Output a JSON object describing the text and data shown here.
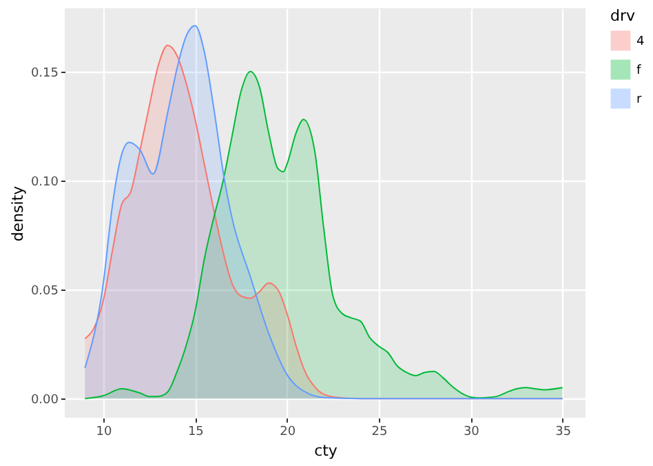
{
  "chart_data": {
    "type": "area",
    "xlabel": "cty",
    "ylabel": "density",
    "legend_title": "drv",
    "legend": "right",
    "grid": true,
    "xlim": [
      7.9,
      36.25
    ],
    "ylim": [
      -0.0088,
      0.179
    ],
    "xticks": [
      10,
      15,
      20,
      25,
      30,
      35
    ],
    "yticks": [
      {
        "value": 0,
        "label": "0.00"
      },
      {
        "value": 0.05,
        "label": "0.05"
      },
      {
        "value": 0.1,
        "label": "0.10"
      },
      {
        "value": 0.15,
        "label": "0.15"
      }
    ],
    "series": [
      {
        "name": "4",
        "color": "#f8766d",
        "x": [
          9,
          9.5,
          10,
          10.5,
          11,
          11.5,
          12,
          12.5,
          13,
          13.5,
          14,
          14.5,
          15,
          15.5,
          16,
          16.5,
          17,
          17.5,
          18,
          18.5,
          19,
          19.5,
          20,
          20.5,
          21,
          21.5,
          22,
          23,
          24,
          28,
          35
        ],
        "values": [
          0.0275,
          0.0325,
          0.045,
          0.068,
          0.089,
          0.095,
          0.114,
          0.134,
          0.153,
          0.162,
          0.1575,
          0.145,
          0.128,
          0.1075,
          0.087,
          0.068,
          0.053,
          0.047,
          0.046,
          0.049,
          0.053,
          0.05,
          0.039,
          0.024,
          0.012,
          0.0055,
          0.002,
          0.0003,
          0,
          0,
          0
        ]
      },
      {
        "name": "f",
        "color": "#00ba38",
        "x": [
          9,
          10,
          11,
          12,
          12.5,
          13,
          13.5,
          14,
          14.5,
          15,
          15.5,
          16,
          16.5,
          17,
          17.5,
          18,
          18.5,
          19,
          19.5,
          19.8,
          20,
          20.5,
          20.9,
          21.5,
          22,
          22.5,
          23,
          23.5,
          24,
          24.5,
          25,
          25.5,
          26,
          26.5,
          27,
          27.5,
          28,
          28.5,
          29,
          29.5,
          30,
          30.5,
          31,
          31.5,
          32,
          32.5,
          33,
          33.5,
          34,
          35
        ],
        "values": [
          0,
          0.0013,
          0.0045,
          0.0025,
          0.0009,
          0.001,
          0.003,
          0.012,
          0.024,
          0.04,
          0.064,
          0.0825,
          0.099,
          0.12,
          0.141,
          0.15,
          0.143,
          0.122,
          0.1055,
          0.104,
          0.1075,
          0.122,
          0.128,
          0.114,
          0.078,
          0.047,
          0.039,
          0.037,
          0.0355,
          0.028,
          0.024,
          0.021,
          0.015,
          0.012,
          0.0105,
          0.012,
          0.0125,
          0.0095,
          0.0055,
          0.0025,
          0.0007,
          0.0003,
          0.0005,
          0.0012,
          0.003,
          0.0045,
          0.005,
          0.0045,
          0.004,
          0.005
        ]
      },
      {
        "name": "r",
        "color": "#619cff",
        "x": [
          9,
          10,
          10.5,
          11,
          11.4,
          12,
          12.7,
          13.5,
          14,
          14.5,
          15,
          15.5,
          16,
          16.6,
          17,
          18,
          19,
          20,
          21,
          22,
          24,
          28,
          35
        ],
        "values": [
          0.014,
          0.053,
          0.089,
          0.112,
          0.1175,
          0.114,
          0.103,
          0.131,
          0.151,
          0.166,
          0.171,
          0.159,
          0.134,
          0.1,
          0.083,
          0.056,
          0.03,
          0.011,
          0.003,
          0.0005,
          0,
          0,
          0
        ]
      }
    ]
  }
}
